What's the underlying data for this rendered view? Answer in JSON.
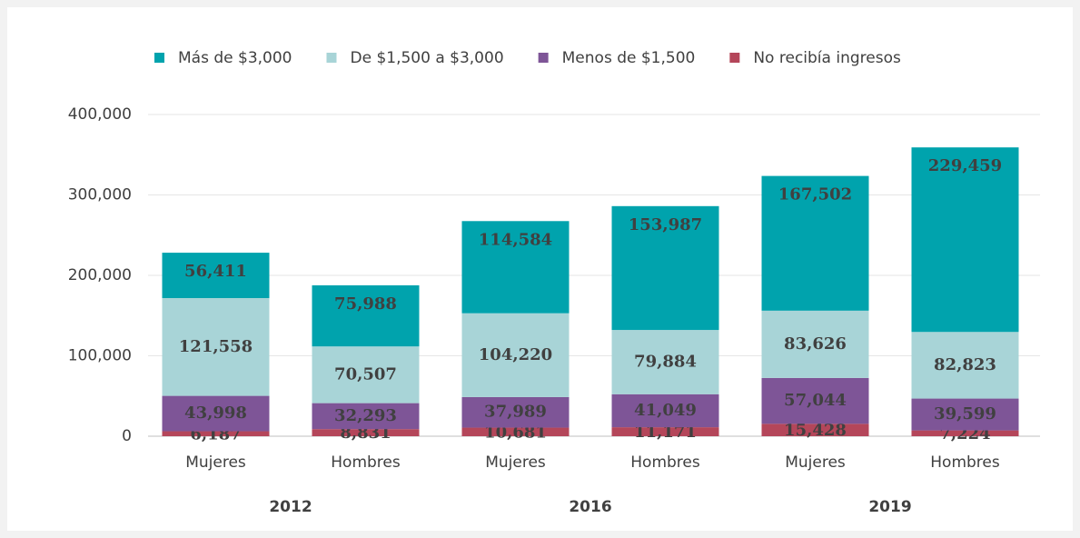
{
  "chart_data": {
    "type": "stacked_bar",
    "categories": [
      "Mujeres",
      "Hombres",
      "Mujeres",
      "Hombres",
      "Mujeres",
      "Hombres"
    ],
    "groups": [
      "2012",
      "2016",
      "2019"
    ],
    "series": [
      {
        "name": "Más de $3,000",
        "color": "#00a3ad",
        "values": [
          56411,
          75988,
          114584,
          153987,
          167502,
          229459
        ],
        "value_labels": [
          "56,411",
          "75,988",
          "114,584",
          "153,987",
          "167,502",
          "229,459"
        ]
      },
      {
        "name": "De $1,500 a $3,000",
        "color": "#a8d4d7",
        "values": [
          121558,
          70507,
          104220,
          79884,
          83626,
          82823
        ],
        "value_labels": [
          "121,558",
          "70,507",
          "104,220",
          "79,884",
          "83,626",
          "82,823"
        ]
      },
      {
        "name": "Menos de $1,500",
        "color": "#7e5597",
        "values": [
          43998,
          32293,
          37989,
          41049,
          57044,
          39599
        ],
        "value_labels": [
          "43,998",
          "32,293",
          "37,989",
          "41,049",
          "57,044",
          "39,599"
        ]
      },
      {
        "name": "No recibía ingresos",
        "color": "#b4465a",
        "values": [
          6187,
          8831,
          10681,
          11171,
          15428,
          7224
        ],
        "value_labels": [
          "6,187",
          "8,831",
          "10,681",
          "11,171",
          "15,428",
          "7,224"
        ]
      }
    ],
    "ylim": [
      0,
      400000
    ],
    "yticks": [
      0,
      {
        "value": 100000,
        "label": "100,000"
      },
      {
        "value": 200000,
        "label": "200,000"
      },
      {
        "value": 300000,
        "label": "300,000"
      },
      {
        "value": 400000,
        "label": "400,000"
      }
    ],
    "grid": true,
    "legend": "top"
  }
}
